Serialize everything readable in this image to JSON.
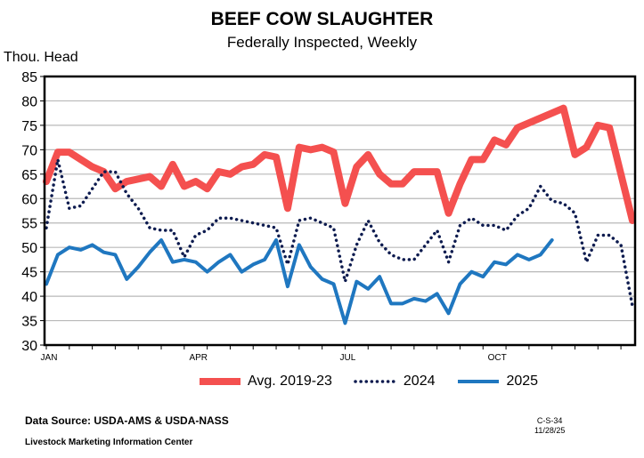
{
  "chart_data": {
    "type": "line",
    "title": "BEEF COW SLAUGHTER",
    "subtitle": "Federally Inspected, Weekly",
    "ylabel": "Thou. Head",
    "ylim": [
      30,
      85
    ],
    "yticks": [
      30,
      35,
      40,
      45,
      50,
      55,
      60,
      65,
      70,
      75,
      80,
      85
    ],
    "xlabel": "",
    "x_tick_labels": [
      {
        "label": "JAN",
        "week": 1
      },
      {
        "label": "APR",
        "week": 14
      },
      {
        "label": "JUL",
        "week": 27
      },
      {
        "label": "OCT",
        "week": 40
      }
    ],
    "grid": true,
    "legend_placement": "bottom",
    "series": [
      {
        "name": "Avg. 2019-23",
        "color": "#f4504f",
        "style": "thick-solid",
        "values": [
          63.5,
          69.5,
          69.5,
          68,
          66.5,
          65.5,
          62,
          63.5,
          64,
          64.5,
          62.5,
          67,
          62.5,
          63.5,
          62,
          65.5,
          65,
          66.5,
          67,
          69,
          68.5,
          58,
          70.5,
          70,
          70.5,
          69.5,
          59,
          66.5,
          69,
          65,
          63,
          63,
          65.5,
          65.5,
          65.5,
          57,
          63,
          68,
          68,
          72,
          71,
          74.5,
          75.5,
          76.5,
          77.5,
          78.5,
          69,
          70.5,
          75,
          74.5,
          65,
          55.5
        ]
      },
      {
        "name": "2024",
        "color": "#0d1b4f",
        "style": "dotted",
        "values": [
          54,
          68,
          58,
          58.5,
          62,
          65.5,
          65.5,
          61,
          58,
          54,
          53.5,
          53.5,
          48,
          52.5,
          53.5,
          56,
          56,
          55.5,
          55,
          54.5,
          54,
          46.5,
          55.5,
          56,
          55,
          54,
          43,
          50.5,
          55.5,
          51,
          48.5,
          47.5,
          47.5,
          50.5,
          53.5,
          47,
          54.5,
          56,
          54.5,
          54.5,
          53.5,
          56.5,
          58,
          62.5,
          59.5,
          59,
          57,
          47,
          52.5,
          52.5,
          50.5,
          38
        ]
      },
      {
        "name": "2025",
        "color": "#1f77c0",
        "style": "solid",
        "values": [
          42.5,
          48.5,
          50,
          49.5,
          50.5,
          49,
          48.5,
          43.5,
          46,
          49,
          51.5,
          47,
          47.5,
          47,
          45,
          47,
          48.5,
          45,
          46.5,
          47.5,
          51.5,
          42,
          50.5,
          46,
          43.5,
          42.5,
          34.5,
          43,
          41.5,
          44,
          38.5,
          38.5,
          39.5,
          39,
          40.5,
          36.5,
          42.5,
          45,
          44,
          47,
          46.5,
          48.5,
          47.5,
          48.5,
          51.5
        ]
      }
    ]
  },
  "footer": {
    "source": "Data Source:  USDA-AMS & USDA-NASS",
    "org": "Livestock Marketing Information Center",
    "code": "C-S-34",
    "date": "11/28/25"
  }
}
